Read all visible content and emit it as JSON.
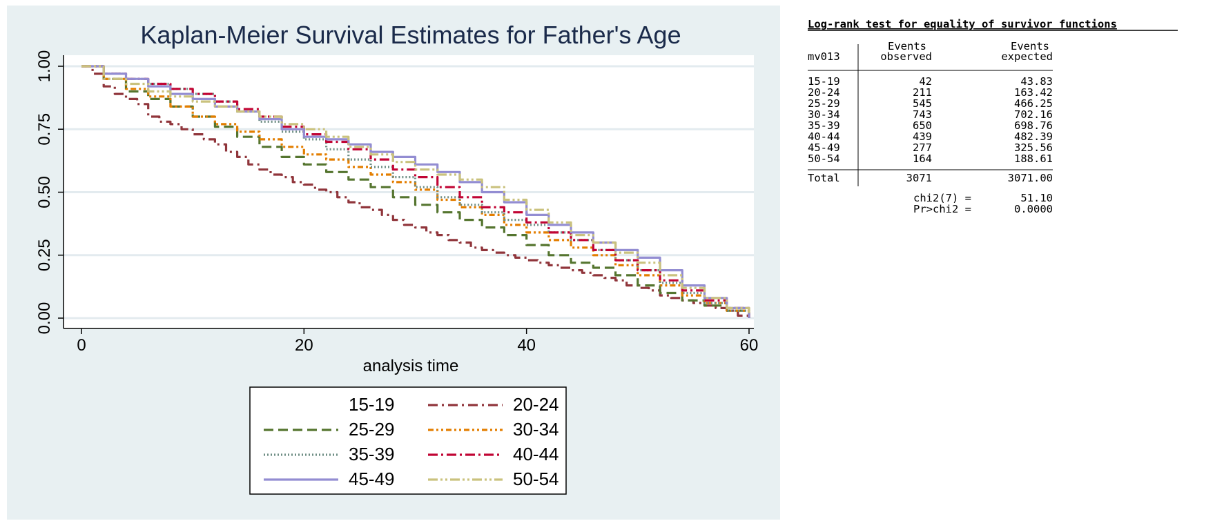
{
  "chart_data": {
    "type": "line",
    "step": true,
    "title": "Kaplan-Meier Survival Estimates for Father's Age",
    "xlabel": "analysis time",
    "ylabel": "",
    "xlim": [
      0,
      60
    ],
    "ylim": [
      0,
      1
    ],
    "x_ticks": [
      0,
      20,
      40,
      60
    ],
    "x_tick_labels": [
      "0",
      "20",
      "40",
      "60"
    ],
    "y_ticks": [
      0,
      0.25,
      0.5,
      0.75,
      1
    ],
    "y_tick_labels": [
      "0.00",
      "0.25",
      "0.50",
      "0.75",
      "1.00"
    ],
    "grid": true,
    "legend_position": "bottom",
    "series": [
      {
        "name": "15-19",
        "color": "#1a476f",
        "dash": "none",
        "visible": false,
        "x": [
          0,
          60
        ],
        "y": [
          1,
          0
        ]
      },
      {
        "name": "20-24",
        "color": "#90353b",
        "dash": "14,6,3,6",
        "visible": true,
        "x": [
          0,
          1,
          2,
          3,
          4,
          5,
          6,
          7,
          8,
          9,
          10,
          11,
          12,
          13,
          14,
          15,
          16,
          17,
          18,
          19,
          20,
          21,
          22,
          23,
          24,
          25,
          26,
          27,
          28,
          29,
          30,
          31,
          32,
          33,
          34,
          35,
          36,
          37,
          38,
          39,
          40,
          41,
          42,
          43,
          44,
          45,
          46,
          47,
          48,
          49,
          50,
          51,
          52,
          53,
          54,
          55,
          56,
          57,
          58,
          59,
          60
        ],
        "y": [
          1,
          0.97,
          0.92,
          0.89,
          0.87,
          0.85,
          0.8,
          0.78,
          0.77,
          0.75,
          0.73,
          0.71,
          0.69,
          0.66,
          0.64,
          0.61,
          0.59,
          0.57,
          0.56,
          0.54,
          0.53,
          0.51,
          0.5,
          0.48,
          0.46,
          0.44,
          0.43,
          0.41,
          0.39,
          0.37,
          0.36,
          0.34,
          0.33,
          0.31,
          0.3,
          0.28,
          0.27,
          0.26,
          0.25,
          0.24,
          0.23,
          0.22,
          0.21,
          0.2,
          0.19,
          0.18,
          0.17,
          0.16,
          0.15,
          0.13,
          0.12,
          0.11,
          0.09,
          0.08,
          0.07,
          0.06,
          0.05,
          0.04,
          0.03,
          0.01,
          0
        ]
      },
      {
        "name": "25-29",
        "color": "#55752f",
        "dash": "14,7",
        "visible": true,
        "x": [
          0,
          2,
          4,
          6,
          8,
          10,
          12,
          14,
          16,
          18,
          20,
          22,
          24,
          26,
          28,
          30,
          32,
          34,
          36,
          38,
          40,
          42,
          44,
          46,
          48,
          50,
          52,
          54,
          56,
          58,
          60
        ],
        "y": [
          1,
          0.95,
          0.9,
          0.87,
          0.84,
          0.8,
          0.76,
          0.72,
          0.68,
          0.64,
          0.61,
          0.58,
          0.55,
          0.52,
          0.48,
          0.45,
          0.42,
          0.39,
          0.36,
          0.33,
          0.29,
          0.25,
          0.22,
          0.2,
          0.17,
          0.13,
          0.1,
          0.07,
          0.05,
          0.03,
          0
        ]
      },
      {
        "name": "30-34",
        "color": "#e37e00",
        "dash": "8,4,3,4,3,4",
        "visible": true,
        "x": [
          0,
          2,
          4,
          6,
          8,
          10,
          12,
          14,
          16,
          18,
          20,
          22,
          24,
          26,
          28,
          30,
          32,
          34,
          36,
          38,
          40,
          42,
          44,
          46,
          48,
          50,
          52,
          54,
          56,
          58,
          60
        ],
        "y": [
          1,
          0.95,
          0.91,
          0.88,
          0.84,
          0.8,
          0.77,
          0.74,
          0.71,
          0.68,
          0.65,
          0.63,
          0.6,
          0.57,
          0.54,
          0.51,
          0.47,
          0.44,
          0.41,
          0.37,
          0.34,
          0.31,
          0.28,
          0.25,
          0.21,
          0.17,
          0.13,
          0.09,
          0.06,
          0.03,
          0
        ]
      },
      {
        "name": "35-39",
        "color": "#6e8e84",
        "dash": "2,3",
        "visible": true,
        "x": [
          0,
          2,
          4,
          6,
          8,
          10,
          12,
          14,
          16,
          18,
          20,
          22,
          24,
          26,
          28,
          30,
          32,
          34,
          36,
          38,
          40,
          42,
          44,
          46,
          48,
          50,
          52,
          54,
          56,
          58,
          60
        ],
        "y": [
          1,
          0.97,
          0.95,
          0.93,
          0.91,
          0.89,
          0.86,
          0.82,
          0.78,
          0.74,
          0.71,
          0.67,
          0.63,
          0.6,
          0.56,
          0.52,
          0.48,
          0.45,
          0.42,
          0.39,
          0.37,
          0.34,
          0.31,
          0.27,
          0.23,
          0.19,
          0.14,
          0.1,
          0.06,
          0.03,
          0
        ]
      },
      {
        "name": "40-44",
        "color": "#c10534",
        "dash": "14,5,3,5",
        "visible": true,
        "x": [
          0,
          2,
          4,
          6,
          8,
          10,
          12,
          14,
          16,
          18,
          20,
          22,
          24,
          26,
          28,
          30,
          32,
          34,
          36,
          38,
          40,
          42,
          44,
          46,
          48,
          50,
          52,
          54,
          56,
          58,
          60
        ],
        "y": [
          1,
          0.97,
          0.95,
          0.93,
          0.91,
          0.89,
          0.86,
          0.83,
          0.8,
          0.76,
          0.73,
          0.7,
          0.67,
          0.63,
          0.59,
          0.56,
          0.52,
          0.48,
          0.44,
          0.42,
          0.38,
          0.34,
          0.31,
          0.27,
          0.23,
          0.19,
          0.15,
          0.11,
          0.07,
          0.04,
          0
        ]
      },
      {
        "name": "45-49",
        "color": "#938dd2",
        "dash": "none",
        "visible": true,
        "x": [
          0,
          2,
          4,
          6,
          8,
          10,
          12,
          14,
          16,
          18,
          20,
          22,
          24,
          26,
          28,
          30,
          32,
          34,
          36,
          38,
          40,
          42,
          44,
          46,
          48,
          50,
          52,
          54,
          56,
          58,
          60
        ],
        "y": [
          1,
          0.97,
          0.95,
          0.92,
          0.89,
          0.87,
          0.84,
          0.82,
          0.79,
          0.75,
          0.72,
          0.71,
          0.69,
          0.66,
          0.64,
          0.61,
          0.58,
          0.54,
          0.5,
          0.46,
          0.41,
          0.37,
          0.34,
          0.3,
          0.27,
          0.24,
          0.19,
          0.13,
          0.08,
          0.04,
          0
        ]
      },
      {
        "name": "50-54",
        "color": "#cac27e",
        "dash": "14,4,3,4,3,4",
        "visible": true,
        "x": [
          0,
          2,
          4,
          6,
          8,
          10,
          12,
          14,
          16,
          18,
          20,
          22,
          24,
          26,
          28,
          30,
          32,
          34,
          36,
          38,
          40,
          42,
          44,
          46,
          48,
          50,
          52,
          54,
          56,
          58,
          60
        ],
        "y": [
          1,
          0.95,
          0.93,
          0.9,
          0.88,
          0.86,
          0.84,
          0.82,
          0.8,
          0.77,
          0.75,
          0.72,
          0.68,
          0.65,
          0.62,
          0.59,
          0.57,
          0.55,
          0.52,
          0.47,
          0.43,
          0.38,
          0.33,
          0.3,
          0.26,
          0.22,
          0.17,
          0.12,
          0.08,
          0.04,
          0.02
        ]
      }
    ]
  },
  "logrank": {
    "title": "Log-rank test for equality of survivor functions",
    "group_header": "mv013",
    "col1_header_line1": "Events",
    "col1_header_line2": "observed",
    "col2_header_line1": "Events",
    "col2_header_line2": "expected",
    "rows": [
      {
        "group": "15-19",
        "observed": "42",
        "expected": "43.83"
      },
      {
        "group": "20-24",
        "observed": "211",
        "expected": "163.42"
      },
      {
        "group": "25-29",
        "observed": "545",
        "expected": "466.25"
      },
      {
        "group": "30-34",
        "observed": "743",
        "expected": "702.16"
      },
      {
        "group": "35-39",
        "observed": "650",
        "expected": "698.76"
      },
      {
        "group": "40-44",
        "observed": "439",
        "expected": "482.39"
      },
      {
        "group": "45-49",
        "observed": "277",
        "expected": "325.56"
      },
      {
        "group": "50-54",
        "observed": "164",
        "expected": "188.61"
      }
    ],
    "total_label": "Total",
    "total_observed": "3071",
    "total_expected": "3071.00",
    "chi2_label": "chi2(7) =",
    "chi2_value": "51.10",
    "p_label": "Pr>chi2 =",
    "p_value": "0.0000"
  }
}
